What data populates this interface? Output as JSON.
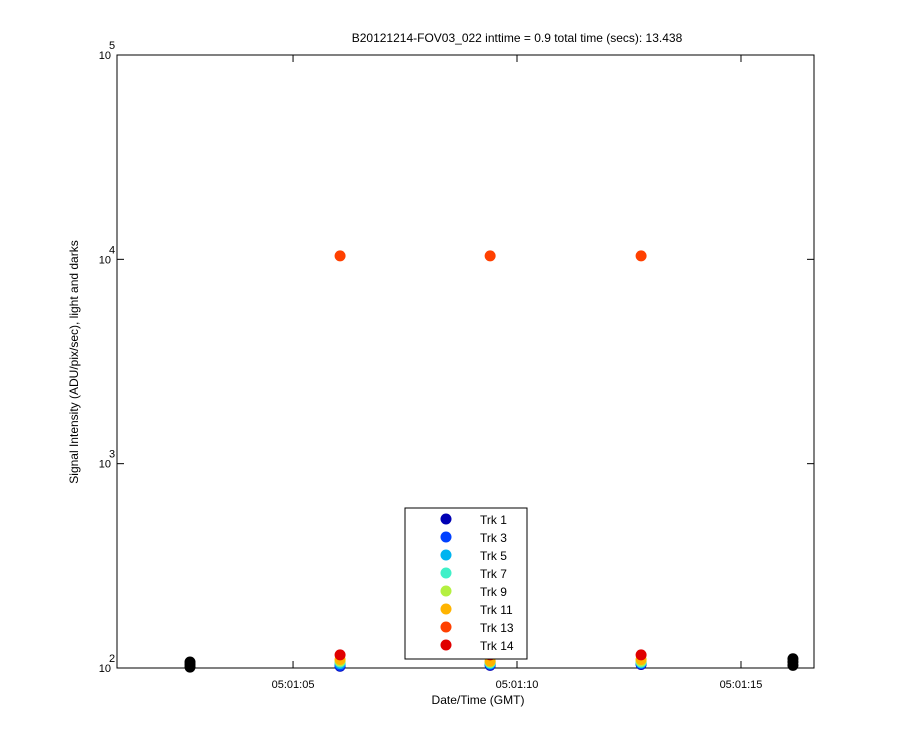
{
  "chart_data": {
    "type": "scatter",
    "title": "B20121214-FOV03_022 inttime = 0.9 total time (secs): 13.438",
    "x_label": "Date/Time (GMT)",
    "y_label": "Signal Intensity (ADU/pix/sec), light and darks",
    "log_y": true,
    "xlim": [
      1.07,
      16.63
    ],
    "xticks": [
      {
        "value": 5,
        "label": "05:01:05"
      },
      {
        "value": 10,
        "label": "05:01:10"
      },
      {
        "value": 15,
        "label": "05:01:15"
      }
    ],
    "ylim": [
      100,
      100000
    ],
    "yticks": [
      {
        "value": 100,
        "label": "10",
        "exponent": "2"
      },
      {
        "value": 1000,
        "label": "10",
        "exponent": "3"
      },
      {
        "value": 10000,
        "label": "10",
        "exponent": "4"
      },
      {
        "value": 100000,
        "label": "10",
        "exponent": "5"
      }
    ],
    "legend": "bottom-center",
    "series": [
      {
        "color": "#000000",
        "x": [
          2.7,
          2.7,
          2.7,
          16.16,
          16.16,
          16.16
        ],
        "values": [
          101,
          104,
          107,
          103,
          107,
          111
        ]
      },
      {
        "name": "Trk 1",
        "color": "#0000b4",
        "x": [
          6.05,
          9.4,
          12.77
        ],
        "values": [
          102,
          103,
          104
        ]
      },
      {
        "name": "Trk 3",
        "color": "#0040ff",
        "x": [
          6.05,
          9.4,
          12.77
        ],
        "values": [
          103,
          104,
          105
        ]
      },
      {
        "name": "Trk 5",
        "color": "#00b4f0",
        "x": [
          6.05,
          9.4,
          12.77
        ],
        "values": [
          105,
          105,
          106
        ]
      },
      {
        "name": "Trk 7",
        "color": "#40f0c8",
        "x": [
          6.05,
          9.4,
          12.77
        ],
        "values": [
          107,
          106,
          107
        ]
      },
      {
        "name": "Trk 9",
        "color": "#b4f040",
        "x": [
          6.05,
          9.4,
          12.77
        ],
        "values": [
          108,
          107,
          108
        ]
      },
      {
        "name": "Trk 11",
        "color": "#ffb400",
        "x": [
          6.05,
          9.4,
          12.77
        ],
        "values": [
          110,
          108,
          110
        ]
      },
      {
        "name": "Trk 13",
        "color": "#ff4000",
        "x": [
          6.05,
          9.4,
          12.77
        ],
        "values": [
          10400,
          10400,
          10400
        ]
      },
      {
        "name": "Trk 14",
        "color": "#e00000",
        "x": [
          6.05,
          9.4,
          12.77
        ],
        "values": [
          116,
          116,
          116
        ]
      }
    ]
  }
}
